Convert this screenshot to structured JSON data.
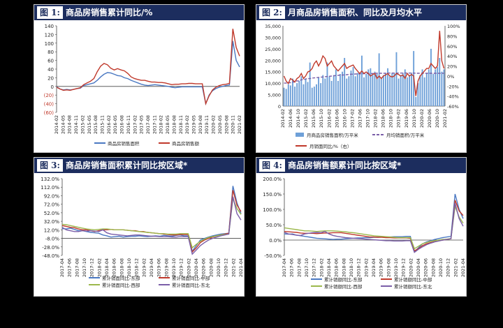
{
  "colors": {
    "navy": "#1c2d5e",
    "blue": "#4a78c2",
    "red": "#c0392b",
    "orange": "#e07a5f",
    "green": "#9cb84c",
    "purple": "#7a5ea8",
    "lightblue": "#6ea0d8",
    "axis": "#444"
  },
  "panels": [
    {
      "num": "图 1:",
      "title": "商品房销售累计同比/%"
    },
    {
      "num": "图 2:",
      "title": "月商品房销售面积、同比及月均水平"
    },
    {
      "num": "图 3:",
      "title": "商品房销售面积累计同比按区域*"
    },
    {
      "num": "图 4:",
      "title": "商品房销售额累计同比按区域*"
    }
  ],
  "chart_data": [
    {
      "type": "line",
      "ylim": [
        -60,
        140
      ],
      "yticks": [
        "140",
        "120",
        "100",
        "80",
        "60",
        "40",
        "20",
        "0",
        "(20)",
        "(40)",
        "(60)"
      ],
      "xticks": [
        "2014-02",
        "2014-05",
        "2014-08",
        "2014-11",
        "2015-02",
        "2015-05",
        "2015-08",
        "2015-11",
        "2016-02",
        "2016-05",
        "2016-08",
        "2016-11",
        "2017-02",
        "2017-05",
        "2017-08",
        "2017-11",
        "2018-02",
        "2018-05",
        "2018-08",
        "2018-11",
        "2019-02",
        "2019-05",
        "2019-08",
        "2019-11",
        "2020-02",
        "2020-05",
        "2020-08",
        "2020-11",
        "2021-02"
      ],
      "series": [
        {
          "name": "商品房销售面积",
          "values": [
            -1,
            -6,
            -8,
            -7,
            -8,
            -7,
            -5,
            -4,
            2,
            4,
            6,
            8,
            14,
            22,
            28,
            32,
            31,
            28,
            25,
            24,
            20,
            18,
            14,
            11,
            8,
            5,
            3,
            2,
            3,
            4,
            3,
            2,
            1,
            0,
            -2,
            -3,
            -2,
            -1,
            -1,
            -1,
            -1,
            -1,
            -1,
            -1,
            -40,
            -20,
            -10,
            -5,
            -2,
            0,
            2,
            3,
            105,
            60,
            45
          ]
        },
        {
          "name": "商品房销售额",
          "values": [
            -2,
            -6,
            -9,
            -8,
            -9,
            -7,
            -5,
            -3,
            4,
            8,
            12,
            18,
            34,
            47,
            53,
            50,
            42,
            38,
            41,
            38,
            36,
            30,
            22,
            18,
            16,
            14,
            14,
            12,
            10,
            10,
            9,
            9,
            8,
            6,
            4,
            5,
            5,
            6,
            6,
            7,
            7,
            6,
            6,
            6,
            -40,
            -22,
            -8,
            -2,
            2,
            4,
            5,
            7,
            133,
            90,
            70
          ]
        }
      ]
    },
    {
      "type": "bar",
      "ylim": [
        0,
        35000
      ],
      "yticks": [
        "35,000",
        "30,000",
        "25,000",
        "20,000",
        "15,000",
        "10,000",
        "5,000",
        "0"
      ],
      "y2ticks": [
        "100%",
        "80%",
        "60%",
        "40%",
        "20%",
        "0%",
        "-20%",
        "-40%",
        "-60%"
      ],
      "y2lim": [
        -60,
        100
      ],
      "xticks": [
        "2014-02",
        "2014-06",
        "2014-10",
        "2015-02",
        "2015-06",
        "2015-10",
        "2016-02",
        "2016-06",
        "2016-10",
        "2017-02",
        "2017-06",
        "2017-10",
        "2018-02",
        "2018-06",
        "2018-10",
        "2019-02",
        "2019-06",
        "2019-10",
        "2020-02",
        "2020-06",
        "2020-10",
        "2021-02"
      ],
      "bars": {
        "name": "月商品房销售面积/万平米",
        "values": [
          8000,
          7500,
          9500,
          9000,
          12000,
          8500,
          10000,
          11000,
          13000,
          9500,
          12000,
          10500,
          19000,
          8000,
          8500,
          9500,
          12500,
          10000,
          13500,
          12000,
          19000,
          13000,
          11000,
          13500,
          16000,
          11000,
          14000,
          15000,
          21000,
          12000,
          13000,
          15500,
          17000,
          13000,
          14500,
          14000,
          22000,
          12500,
          14000,
          16000,
          16500,
          13500,
          15000,
          14000,
          23000,
          12000,
          13500,
          14500,
          16500,
          13000,
          14500,
          14500,
          23500,
          12000,
          13500,
          14500,
          16000,
          12500,
          13500,
          14500,
          24000,
          4000,
          10000,
          13500,
          16000,
          12500,
          14500,
          16000,
          25000,
          14000,
          16000,
          17000,
          21000,
          15000,
          16000
        ]
      },
      "avg": {
        "name": "月均销面积/万平米",
        "values": [
          10000,
          10000,
          10200,
          10200,
          10500,
          10500,
          11000,
          11000,
          11500,
          11500,
          11800,
          12000,
          12000,
          12200,
          12300,
          12400,
          12500,
          12600,
          12700,
          12800,
          12900,
          13000,
          13100,
          13200,
          13300,
          13400,
          13500,
          13500,
          13600,
          13700,
          13800,
          13900,
          13900,
          14000,
          14000,
          14100,
          14100,
          14100,
          14200,
          14200,
          14200,
          14200,
          14300,
          14300,
          14300,
          14300,
          14300,
          14300,
          14400,
          14400,
          14400,
          14400,
          14400,
          14400,
          14400,
          14400,
          14400,
          14400,
          14400,
          14400,
          14400,
          14300,
          14300,
          14300,
          14300,
          14300,
          14300,
          14300,
          14300,
          14300,
          14300,
          14300,
          14300,
          14300,
          14300
        ]
      },
      "line": {
        "name": "月销面同比/%（右）",
        "values": [
          0,
          -10,
          -15,
          -5,
          -8,
          -12,
          -5,
          -2,
          5,
          -5,
          0,
          8,
          10,
          15,
          25,
          30,
          20,
          28,
          40,
          35,
          20,
          25,
          30,
          20,
          15,
          10,
          15,
          20,
          25,
          15,
          18,
          20,
          22,
          15,
          10,
          5,
          10,
          5,
          8,
          5,
          0,
          3,
          5,
          -5,
          0,
          -5,
          0,
          2,
          5,
          0,
          -2,
          0,
          5,
          3,
          0,
          2,
          -5,
          5,
          0,
          3,
          0,
          -40,
          -10,
          0,
          5,
          10,
          15,
          15,
          25,
          20,
          15,
          20,
          90,
          30,
          15
        ]
      }
    },
    {
      "type": "line",
      "ylim": [
        -48,
        132
      ],
      "yticks": [
        "132.0%",
        "112.0%",
        "92.0%",
        "72.0%",
        "52.0%",
        "32.0%",
        "12.0%",
        "-8.0%",
        "-28.0%",
        "-48.0%"
      ],
      "xticks": [
        "2017-04",
        "2017-06",
        "2017-08",
        "2017-10",
        "2017-12",
        "2018-02",
        "2018-04",
        "2018-06",
        "2018-08",
        "2018-10",
        "2018-12",
        "2019-02",
        "2019-04",
        "2019-06",
        "2019-08",
        "2019-10",
        "2019-12",
        "2020-02",
        "2020-04",
        "2020-06",
        "2020-08",
        "2020-10",
        "2020-12",
        "2021-02",
        "2021-04"
      ],
      "series": [
        {
          "name": "累计销面同比-东部",
          "values": [
            15,
            14,
            16,
            13,
            10,
            10,
            8,
            6,
            5,
            4,
            0,
            -2,
            -5,
            -4,
            -3,
            -5,
            -4,
            -3,
            -3,
            -2,
            -3,
            -4,
            -3,
            -2,
            -3,
            -1,
            -2,
            -3,
            -1,
            0,
            -2,
            -2,
            -38,
            -25,
            -12,
            -8,
            -5,
            -2,
            0,
            2,
            3,
            4,
            115,
            75,
            50
          ]
        },
        {
          "name": "累计销面同比-中部",
          "values": [
            22,
            20,
            18,
            17,
            14,
            12,
            12,
            10,
            8,
            10,
            12,
            12,
            13,
            12,
            12,
            12,
            11,
            10,
            10,
            8,
            8,
            6,
            5,
            4,
            3,
            2,
            1,
            0,
            0,
            1,
            1,
            1,
            -40,
            -30,
            -18,
            -12,
            -8,
            -5,
            -2,
            0,
            2,
            4,
            105,
            70,
            55
          ]
        },
        {
          "name": "累计销面同比-西部",
          "values": [
            25,
            24,
            22,
            20,
            18,
            16,
            14,
            13,
            12,
            13,
            14,
            14,
            13,
            12,
            12,
            12,
            11,
            10,
            9,
            8,
            7,
            6,
            5,
            4,
            3,
            3,
            2,
            2,
            2,
            3,
            3,
            3,
            -30,
            -22,
            -15,
            -10,
            -6,
            -4,
            -2,
            0,
            1,
            2,
            85,
            62,
            48
          ]
        },
        {
          "name": "累计销面同比-东北",
          "values": [
            18,
            12,
            10,
            8,
            8,
            10,
            9,
            10,
            9,
            8,
            12,
            5,
            2,
            1,
            0,
            -1,
            -2,
            -1,
            0,
            0,
            -1,
            -2,
            -3,
            -3,
            -4,
            -4,
            -4,
            -5,
            -5,
            -4,
            -4,
            -4,
            -45,
            -35,
            -25,
            -18,
            -12,
            -8,
            -5,
            -2,
            0,
            2,
            90,
            50,
            35
          ]
        }
      ]
    },
    {
      "type": "line",
      "ylim": [
        -50,
        200
      ],
      "yticks": [
        "200.0%",
        "150.0%",
        "100.0%",
        "50.0%",
        "0.0%",
        "-50.0%"
      ],
      "xticks": [
        "2017-04",
        "2017-06",
        "2017-08",
        "2017-10",
        "2017-12",
        "2018-02",
        "2018-04",
        "2018-06",
        "2018-08",
        "2018-10",
        "2018-12",
        "2019-02",
        "2019-04",
        "2019-06",
        "2019-08",
        "2019-10",
        "2019-12",
        "2020-02",
        "2020-04",
        "2020-06",
        "2020-08",
        "2020-10",
        "2020-12",
        "2021-02",
        "2021-04"
      ],
      "series": [
        {
          "name": "累计销额同比-东部",
          "values": [
            20,
            19,
            20,
            16,
            14,
            12,
            10,
            8,
            6,
            5,
            4,
            3,
            2,
            3,
            3,
            4,
            5,
            6,
            7,
            7,
            8,
            8,
            9,
            9,
            10,
            10,
            10,
            11,
            11,
            11,
            12,
            12,
            -38,
            -25,
            -12,
            -6,
            -2,
            2,
            5,
            8,
            10,
            12,
            150,
            100,
            70
          ]
        },
        {
          "name": "累计销额同比-中部",
          "values": [
            28,
            27,
            26,
            25,
            23,
            22,
            22,
            22,
            21,
            22,
            23,
            23,
            24,
            24,
            24,
            22,
            20,
            18,
            16,
            14,
            12,
            10,
            10,
            9,
            9,
            8,
            8,
            7,
            7,
            7,
            7,
            6,
            -35,
            -28,
            -18,
            -12,
            -8,
            -5,
            -2,
            0,
            2,
            4,
            130,
            95,
            80
          ]
        },
        {
          "name": "累计销额同比-西部",
          "values": [
            40,
            38,
            36,
            34,
            32,
            30,
            30,
            29,
            28,
            29,
            30,
            30,
            30,
            29,
            28,
            27,
            25,
            24,
            22,
            20,
            18,
            16,
            14,
            13,
            12,
            11,
            10,
            9,
            8,
            8,
            8,
            8,
            -28,
            -20,
            -12,
            -8,
            -4,
            -2,
            0,
            2,
            3,
            5,
            110,
            75,
            55
          ]
        },
        {
          "name": "累计销额同比-东北",
          "values": [
            25,
            20,
            18,
            16,
            15,
            20,
            22,
            24,
            25,
            24,
            28,
            20,
            15,
            12,
            10,
            8,
            7,
            6,
            5,
            4,
            3,
            2,
            1,
            0,
            -1,
            -2,
            -2,
            -3,
            -3,
            -3,
            -2,
            -2,
            -40,
            -30,
            -22,
            -15,
            -10,
            -6,
            -3,
            0,
            2,
            4,
            120,
            70,
            45
          ]
        }
      ]
    }
  ]
}
